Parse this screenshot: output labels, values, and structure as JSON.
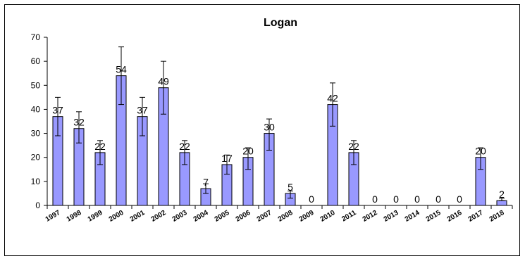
{
  "chart_data": {
    "type": "bar",
    "title": "Logan",
    "xlabel": "",
    "ylabel": "",
    "categories": [
      "1997",
      "1998",
      "1999",
      "2000",
      "2001",
      "2002",
      "2003",
      "2004",
      "2005",
      "2006",
      "2007",
      "2008",
      "2009",
      "2010",
      "2011",
      "2012",
      "2013",
      "2014",
      "2015",
      "2016",
      "2017",
      "2018"
    ],
    "values": [
      37,
      32,
      22,
      54,
      37,
      49,
      22,
      7,
      17,
      20,
      30,
      5,
      0,
      42,
      22,
      0,
      0,
      0,
      0,
      0,
      20,
      2
    ],
    "error_bars": {
      "lower": [
        29,
        26,
        17,
        42,
        29,
        38,
        17,
        5,
        13,
        15,
        23,
        3,
        0,
        33,
        17,
        0,
        0,
        0,
        0,
        0,
        15,
        2
      ],
      "upper": [
        45,
        39,
        27,
        66,
        45,
        60,
        27,
        9,
        21,
        24,
        36,
        6,
        0,
        51,
        27,
        0,
        0,
        0,
        0,
        0,
        24,
        3
      ]
    },
    "data_labels": [
      "37",
      "32",
      "22",
      "54",
      "37",
      "49",
      "22",
      "7",
      "17",
      "20",
      "30",
      "5",
      "0",
      "42",
      "22",
      "0",
      "0",
      "0",
      "0",
      "0",
      "20",
      "2"
    ],
    "ylim": [
      0,
      70
    ],
    "yticks": [
      0,
      10,
      20,
      30,
      40,
      50,
      60,
      70
    ],
    "grid": false,
    "legend": "none",
    "colors": {
      "bar_fill": "#9999ff",
      "bar_stroke": "#000000",
      "axis": "#000000",
      "error_bar": "#000000"
    }
  }
}
